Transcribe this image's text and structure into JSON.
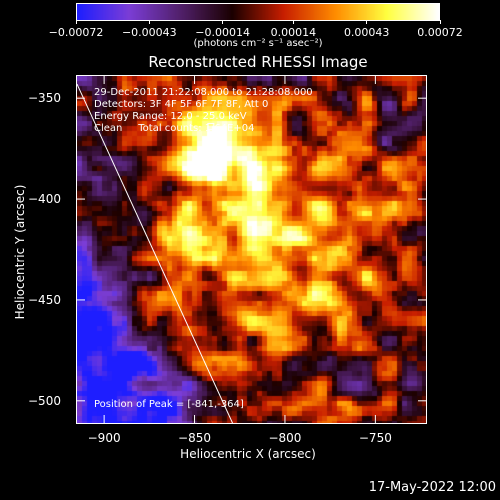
{
  "chart_data": {
    "type": "heatmap",
    "title": "Reconstructed RHESSI Image",
    "xlabel": "Heliocentric X (arcsec)",
    "ylabel": "Heliocentric Y (arcsec)",
    "xlim": [
      -915,
      -722
    ],
    "ylim": [
      -511,
      -339
    ],
    "x_ticks": [
      -900,
      -850,
      -800,
      -750
    ],
    "y_ticks": [
      -350,
      -400,
      -450,
      -500
    ],
    "x_tick_labels": [
      "−900",
      "−850",
      "−800",
      "−750"
    ],
    "y_tick_labels": [
      "−350",
      "−400",
      "−450",
      "−500"
    ],
    "colorbar": {
      "ticks": [
        -0.00072,
        -0.00043,
        -0.00014,
        0.00014,
        0.00043,
        0.00072
      ],
      "tick_labels": [
        "−0.00072",
        "−0.00043",
        "−0.00014",
        "0.00014",
        "0.00043",
        "0.00072"
      ],
      "unit": "(photons cm⁻² s⁻¹ asec⁻²)",
      "range": [
        -0.00072,
        0.00072
      ]
    },
    "annotations": [
      "29-Dec-2011 21:22:08.000 to 21:28:08.000",
      "Detectors: 3F 4F 5F 6F 7F 8F, Att 0",
      "Energy Range: 12.0 - 25.0 keV",
      "Clean     Total counts: 1.64E+04"
    ],
    "peak_label": "Position of Peak = [-841,-364]",
    "peak": [
      -841,
      -364
    ],
    "limb_line": [
      [
        -915,
        -343
      ],
      [
        -829,
        -511
      ]
    ]
  },
  "timestamp": "17-May-2022 12:00",
  "colors": {
    "background": "#000000",
    "foreground": "#ffffff",
    "colormap": [
      "#1e1eff",
      "#7b3dd6",
      "#51206a",
      "#1a0000",
      "#c81e00",
      "#ff8c00",
      "#ffff40",
      "#ffffff"
    ]
  }
}
